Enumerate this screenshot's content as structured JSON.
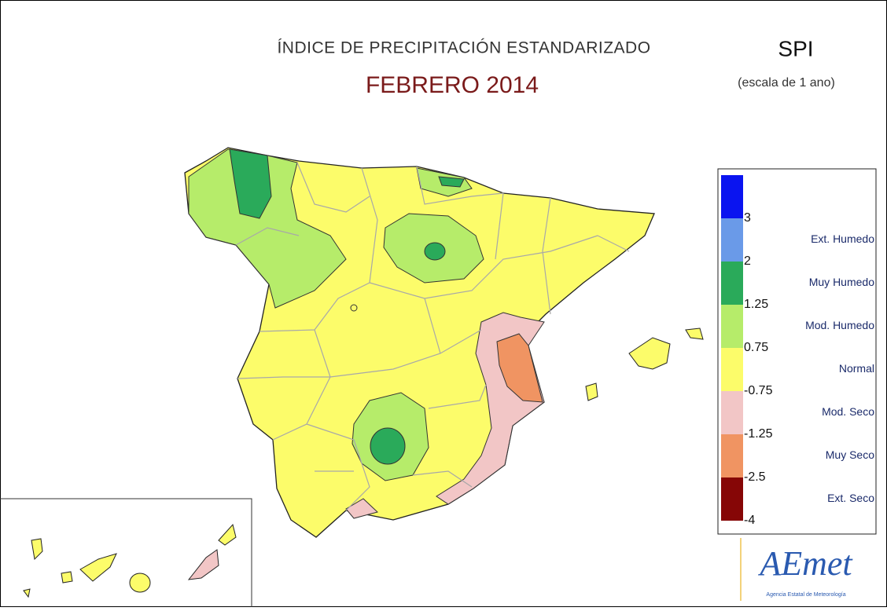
{
  "header": {
    "title": "ÍNDICE DE PRECIPITACIÓN ESTANDARIZADO",
    "subtitle": "FEBRERO 2014",
    "index": "SPI",
    "scale": "(escala de 1 ano)"
  },
  "legend": {
    "breaks": [
      3,
      2,
      1.25,
      0.75,
      -0.75,
      -1.25,
      -2.5,
      -4
    ],
    "labels": [
      "Ext. Humedo",
      "Muy Humedo",
      "Mod. Humedo",
      "Normal",
      "Mod. Seco",
      "Muy Seco",
      "Ext. Seco"
    ],
    "colors": [
      "#0a14f0",
      "#6a9ae8",
      "#2aaa5a",
      "#b6ec6a",
      "#fcfc6a",
      "#f2c6c6",
      "#f09462",
      "#860606"
    ]
  },
  "logo": {
    "name": "AEmet",
    "agency": "Agencia Estatal de Meteorología"
  }
}
